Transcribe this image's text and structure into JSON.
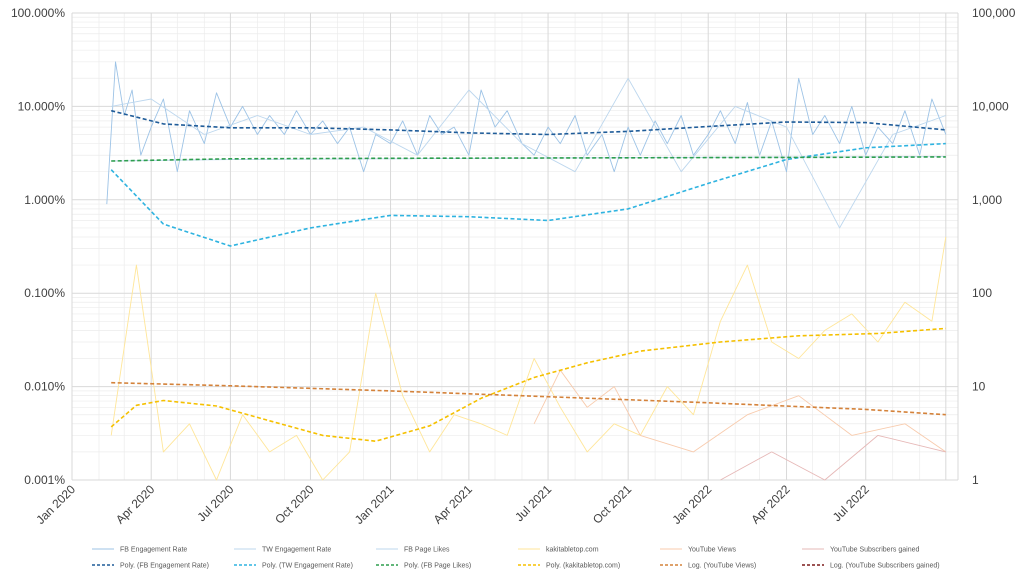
{
  "chart_data": {
    "type": "line",
    "title": "",
    "xlabel": "",
    "ylabel_left": "",
    "ylabel_right": "",
    "x_range": [
      "2020-01-01",
      "2022-10-15"
    ],
    "x_tick_labels": [
      "Jan 2020",
      "Apr 2020",
      "Jul 2020",
      "Oct 2020",
      "Jan 2021",
      "Apr 2021",
      "Jul 2021",
      "Oct 2021",
      "Jan 2022",
      "Apr 2022",
      "Jul 2022"
    ],
    "y_left": {
      "scale": "log",
      "range": [
        0.001,
        100
      ],
      "unit": "%",
      "tick_labels": [
        "0.001%",
        "0.010%",
        "0.100%",
        "1.000%",
        "10.000%",
        "100.000%"
      ]
    },
    "y_right": {
      "scale": "log",
      "range": [
        1,
        100000
      ],
      "tick_labels": [
        "1",
        "10",
        "100",
        "1,000",
        "10,000",
        "100,000"
      ]
    },
    "grid": true,
    "legend_position": "bottom",
    "series": [
      {
        "name": "FB Engagement Rate",
        "axis": "left",
        "color": "#9dc3e6",
        "x": [
          "2020-02-10",
          "2020-02-20",
          "2020-03-01",
          "2020-03-10",
          "2020-03-20",
          "2020-04-01",
          "2020-04-15",
          "2020-05-01",
          "2020-05-15",
          "2020-06-01",
          "2020-06-15",
          "2020-07-01",
          "2020-07-15",
          "2020-08-01",
          "2020-08-15",
          "2020-09-01",
          "2020-09-15",
          "2020-10-01",
          "2020-10-15",
          "2020-11-01",
          "2020-11-15",
          "2020-12-01",
          "2020-12-15",
          "2021-01-01",
          "2021-01-15",
          "2021-02-01",
          "2021-02-15",
          "2021-03-01",
          "2021-03-15",
          "2021-04-01",
          "2021-04-15",
          "2021-05-01",
          "2021-05-15",
          "2021-06-01",
          "2021-06-15",
          "2021-07-01",
          "2021-07-15",
          "2021-08-01",
          "2021-08-15",
          "2021-09-01",
          "2021-09-15",
          "2021-10-01",
          "2021-10-15",
          "2021-11-01",
          "2021-11-15",
          "2021-12-01",
          "2021-12-15",
          "2022-01-01",
          "2022-01-15",
          "2022-02-01",
          "2022-02-15",
          "2022-03-01",
          "2022-03-15",
          "2022-04-01",
          "2022-04-15",
          "2022-05-01",
          "2022-05-15",
          "2022-06-01",
          "2022-06-15",
          "2022-07-01",
          "2022-07-15",
          "2022-08-01",
          "2022-08-15",
          "2022-09-01",
          "2022-09-15",
          "2022-10-01"
        ],
        "y": [
          0.9,
          30,
          8,
          15,
          3,
          6,
          12,
          2,
          9,
          4,
          14,
          6,
          10,
          5,
          8,
          5,
          9,
          5,
          7,
          4,
          6,
          2,
          5,
          4,
          7,
          3,
          8,
          5,
          6,
          3,
          15,
          6,
          9,
          4,
          3,
          6,
          4,
          8,
          3,
          5,
          2,
          6,
          3,
          7,
          4,
          8,
          3,
          5,
          9,
          4,
          11,
          3,
          7,
          2,
          20,
          5,
          8,
          4,
          10,
          3,
          6,
          4,
          9,
          3,
          12,
          5
        ]
      },
      {
        "name": "TW Engagement Rate",
        "axis": "left",
        "color": "#bdd7ee",
        "x": [
          "2020-02-15",
          "2020-04-01",
          "2020-06-01",
          "2020-08-01",
          "2020-10-01",
          "2020-12-01",
          "2021-02-01",
          "2021-04-01",
          "2021-06-01",
          "2021-08-01",
          "2021-10-01",
          "2021-12-01",
          "2022-02-01",
          "2022-04-01",
          "2022-06-01",
          "2022-08-01",
          "2022-10-01"
        ],
        "y": [
          10,
          12,
          5,
          8,
          5,
          6,
          3,
          15,
          4,
          2,
          20,
          2,
          10,
          6,
          0.5,
          5,
          8
        ]
      },
      {
        "name": "FB Page Likes",
        "axis": "right",
        "color": "#bdd7ee",
        "x": [
          "2020-02-15",
          "2020-07-01",
          "2021-01-01",
          "2021-07-01",
          "2022-01-01",
          "2022-06-01",
          "2022-10-01"
        ],
        "y": [
          2600,
          2700,
          2750,
          2800,
          2850,
          2880,
          2900
        ]
      },
      {
        "name": "kakitabletop.com",
        "axis": "right",
        "color": "#ffe699",
        "x": [
          "2020-02-15",
          "2020-03-15",
          "2020-04-15",
          "2020-05-15",
          "2020-06-15",
          "2020-07-15",
          "2020-08-15",
          "2020-09-15",
          "2020-10-15",
          "2020-11-15",
          "2020-12-15",
          "2021-01-15",
          "2021-02-15",
          "2021-03-15",
          "2021-04-15",
          "2021-05-15",
          "2021-06-15",
          "2021-07-15",
          "2021-08-15",
          "2021-09-15",
          "2021-10-15",
          "2021-11-15",
          "2021-12-15",
          "2022-01-15",
          "2022-02-15",
          "2022-03-15",
          "2022-04-15",
          "2022-05-15",
          "2022-06-15",
          "2022-07-15",
          "2022-08-15",
          "2022-09-15",
          "2022-10-01"
        ],
        "y": [
          3,
          200,
          2,
          4,
          1,
          5,
          2,
          3,
          1,
          2,
          100,
          8,
          2,
          5,
          4,
          3,
          20,
          6,
          2,
          4,
          3,
          10,
          5,
          50,
          200,
          30,
          20,
          40,
          60,
          30,
          80,
          50,
          400
        ]
      },
      {
        "name": "YouTube Views",
        "axis": "right",
        "color": "#f8cbad",
        "x": [
          "2021-06-15",
          "2021-07-15",
          "2021-08-15",
          "2021-09-15",
          "2021-10-15",
          "2021-12-15",
          "2022-02-15",
          "2022-04-15",
          "2022-06-15",
          "2022-08-15",
          "2022-10-01"
        ],
        "y": [
          4,
          15,
          6,
          10,
          3,
          2,
          5,
          8,
          3,
          4,
          2
        ]
      },
      {
        "name": "YouTube Subscribers gained",
        "axis": "right",
        "color": "#e6b8b7",
        "x": [
          "2022-01-15",
          "2022-03-15",
          "2022-05-15",
          "2022-07-15",
          "2022-10-01"
        ],
        "y": [
          1,
          2,
          1,
          3,
          2
        ]
      },
      {
        "name": "Poly. (FB Engagement Rate)",
        "axis": "left",
        "color": "#1f5c99",
        "dash": true,
        "x": [
          "2020-02-15",
          "2020-04-15",
          "2020-07-01",
          "2020-10-01",
          "2021-01-01",
          "2021-04-01",
          "2021-07-01",
          "2021-10-01",
          "2022-01-01",
          "2022-04-01",
          "2022-07-01",
          "2022-10-01"
        ],
        "y": [
          9.0,
          6.5,
          5.9,
          5.9,
          5.6,
          5.2,
          5.0,
          5.4,
          6.1,
          6.8,
          6.7,
          5.6
        ]
      },
      {
        "name": "Poly. (TW Engagement Rate)",
        "axis": "left",
        "color": "#2eb3e0",
        "dash": true,
        "x": [
          "2020-02-15",
          "2020-04-15",
          "2020-07-01",
          "2020-10-01",
          "2021-01-01",
          "2021-04-01",
          "2021-07-01",
          "2021-10-01",
          "2022-01-01",
          "2022-04-01",
          "2022-07-01",
          "2022-10-01"
        ],
        "y": [
          2.1,
          0.55,
          0.32,
          0.5,
          0.68,
          0.66,
          0.6,
          0.8,
          1.5,
          2.7,
          3.6,
          4.0
        ]
      },
      {
        "name": "Poly. (FB Page Likes)",
        "axis": "right",
        "color": "#2e9e4e",
        "dash": true,
        "x": [
          "2020-02-15",
          "2020-07-01",
          "2021-01-01",
          "2021-07-01",
          "2022-01-01",
          "2022-07-01",
          "2022-10-01"
        ],
        "y": [
          2600,
          2750,
          2780,
          2800,
          2830,
          2860,
          2880
        ]
      },
      {
        "name": "Poly. (kakitabletop.com)",
        "axis": "right",
        "color": "#f5c000",
        "dash": true,
        "x": [
          "2020-02-15",
          "2020-03-15",
          "2020-04-15",
          "2020-06-15",
          "2020-08-15",
          "2020-10-15",
          "2020-12-15",
          "2021-02-15",
          "2021-04-15",
          "2021-06-15",
          "2021-08-15",
          "2021-10-15",
          "2022-01-15",
          "2022-04-15",
          "2022-07-15",
          "2022-10-01"
        ],
        "y": [
          3.7,
          6.3,
          7.1,
          6.2,
          4.3,
          3.0,
          2.6,
          3.8,
          7.5,
          12.5,
          18,
          24,
          30,
          35,
          37,
          42
        ]
      },
      {
        "name": "Log. (YouTube Views)",
        "axis": "right",
        "color": "#d4823a",
        "dash": true,
        "x": [
          "2020-02-15",
          "2020-07-01",
          "2021-01-01",
          "2021-07-01",
          "2022-01-01",
          "2022-07-01",
          "2022-10-01"
        ],
        "y": [
          11,
          10.2,
          9.0,
          7.8,
          6.7,
          5.7,
          5.0
        ]
      },
      {
        "name": "Log. (YouTube Subscribers gained)",
        "axis": "right",
        "color": "#7b1a1a",
        "dash": true,
        "x": [],
        "y": []
      }
    ]
  }
}
